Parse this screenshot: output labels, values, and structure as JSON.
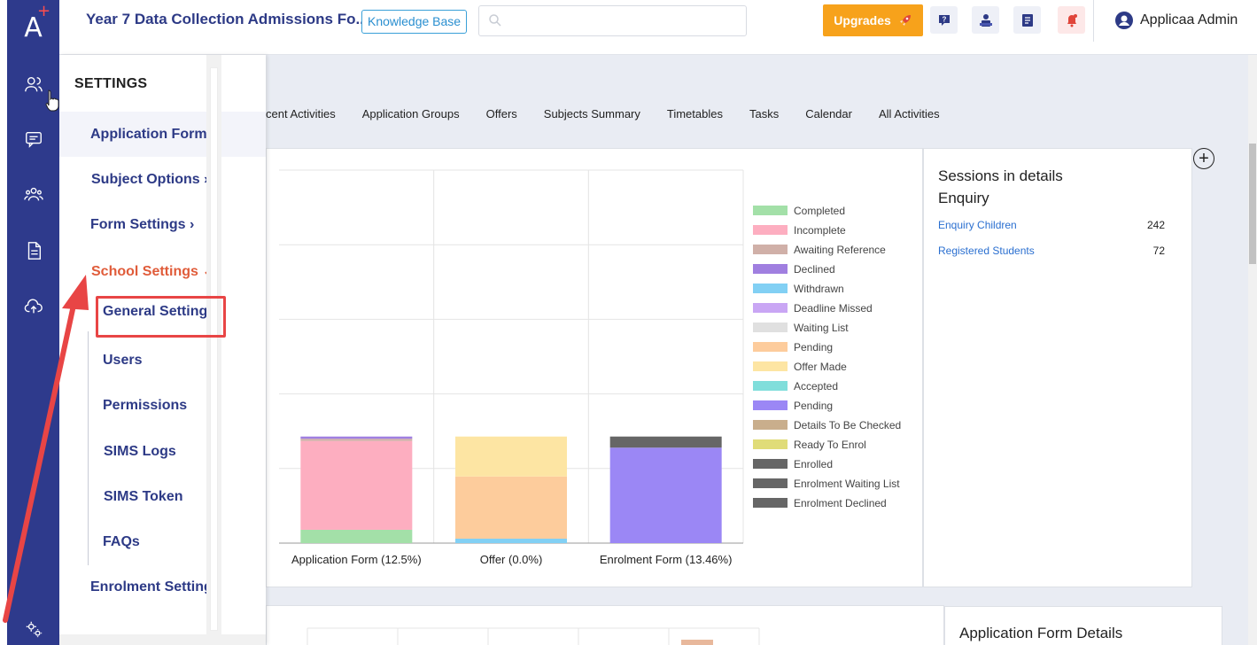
{
  "brand": {
    "logo_text": "A",
    "logo_plus": "+"
  },
  "header": {
    "title": "Year 7 Data Collection Admissions Fo...",
    "knowledge_base": "Knowledge Base",
    "search_placeholder": "",
    "upgrade_label": "Upgrades",
    "user_name": "Applicaa Admin"
  },
  "tabs": [
    "cent Activities",
    "Application Groups",
    "Offers",
    "Subjects Summary",
    "Timetables",
    "Tasks",
    "Calendar",
    "All Activities"
  ],
  "menu": {
    "heading": "SETTINGS",
    "items": [
      {
        "label": "Application Form",
        "arrow": ""
      },
      {
        "label": "Subject Options",
        "arrow": "›"
      },
      {
        "label": "Form Settings",
        "arrow": "›"
      },
      {
        "label": "School Settings",
        "arrow": "⌄"
      }
    ],
    "sub_items": [
      "General Settings",
      "Users",
      "Permissions",
      "SIMS Logs",
      "SIMS Token",
      "FAQs"
    ],
    "last_item": "Enrolment Settings"
  },
  "sessions": {
    "title_line1": "Sessions in details",
    "title_line2": "Enquiry",
    "rows": [
      {
        "label": "Enquiry Children",
        "value": "242"
      },
      {
        "label": "Registered Students",
        "value": "72"
      }
    ]
  },
  "bottom_panel": {
    "title": "Application Form Details"
  },
  "chart_data": {
    "type": "bar",
    "stacked": true,
    "categories": [
      "Application Form (12.5%)",
      "Offer (0.0%)",
      "Enrolment Form (13.46%)"
    ],
    "legend_position": "right",
    "grid": true,
    "series": [
      {
        "name": "Completed",
        "color": "#a3e0a8",
        "values": [
          6,
          0,
          0
        ]
      },
      {
        "name": "Incomplete",
        "color": "#fdaec0",
        "values": [
          40,
          0,
          0
        ]
      },
      {
        "name": "Awaiting Reference",
        "color": "#d0b0a8",
        "values": [
          1,
          0,
          0
        ]
      },
      {
        "name": "Declined",
        "color": "#a07fe0",
        "values": [
          1,
          0,
          0
        ]
      },
      {
        "name": "Withdrawn",
        "color": "#82d0f4",
        "values": [
          0,
          2,
          0
        ]
      },
      {
        "name": "Deadline Missed",
        "color": "#c9a6f4",
        "values": [
          0,
          0,
          0
        ]
      },
      {
        "name": "Waiting List",
        "color": "#e0e0e0",
        "values": [
          0,
          0,
          0
        ]
      },
      {
        "name": "Pending",
        "color": "#fdcc9c",
        "values": [
          0,
          28,
          0
        ]
      },
      {
        "name": "Offer Made",
        "color": "#fde5a3",
        "values": [
          0,
          18,
          0
        ]
      },
      {
        "name": "Accepted",
        "color": "#80dedb",
        "values": [
          0,
          0,
          0
        ]
      },
      {
        "name": "Pending",
        "color": "#9b87f5",
        "values": [
          0,
          0,
          43
        ]
      },
      {
        "name": "Details To Be Checked",
        "color": "#c9ae8c",
        "values": [
          0,
          0,
          0
        ]
      },
      {
        "name": "Ready To Enrol",
        "color": "#e0dc78",
        "values": [
          0,
          0,
          0
        ]
      },
      {
        "name": "Enrolled",
        "color": "#666666",
        "values": [
          0,
          0,
          5
        ]
      },
      {
        "name": "Enrolment Waiting List",
        "color": "#666666",
        "values": [
          0,
          0,
          0
        ]
      },
      {
        "name": "Enrolment Declined",
        "color": "#666666",
        "values": [
          0,
          0,
          0
        ]
      }
    ],
    "ylim": [
      0,
      168
    ]
  }
}
